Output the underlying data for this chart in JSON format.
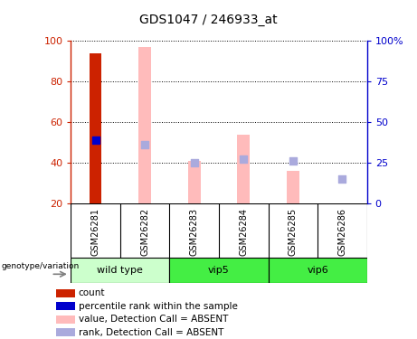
{
  "title": "GDS1047 / 246933_at",
  "samples": [
    "GSM26281",
    "GSM26282",
    "GSM26283",
    "GSM26284",
    "GSM26285",
    "GSM26286"
  ],
  "groups": {
    "wild type": [
      0,
      1
    ],
    "vip5": [
      2,
      3
    ],
    "vip6": [
      4,
      5
    ]
  },
  "group_order": [
    "wild type",
    "vip5",
    "vip6"
  ],
  "bar_bottom": 20,
  "ylim": [
    20,
    100
  ],
  "right_ylim": [
    0,
    100
  ],
  "right_yticks": [
    0,
    25,
    50,
    75,
    100
  ],
  "right_yticklabels": [
    "0",
    "25",
    "50",
    "75",
    "100%"
  ],
  "left_yticks": [
    20,
    40,
    60,
    80,
    100
  ],
  "left_yticklabels": [
    "20",
    "40",
    "60",
    "80",
    "100"
  ],
  "count_values": [
    94,
    null,
    null,
    null,
    null,
    null
  ],
  "count_color": "#cc2200",
  "percentile_values": [
    51,
    null,
    null,
    null,
    null,
    null
  ],
  "percentile_color": "#0000cc",
  "absent_value_bars": [
    null,
    97,
    41,
    54,
    36,
    20
  ],
  "absent_value_color": "#ffbbbb",
  "absent_rank_dots": [
    null,
    49,
    40,
    42,
    41,
    32
  ],
  "absent_rank_color": "#aaaadd",
  "bar_width": 0.25,
  "dot_size": 30,
  "grid_linestyle": "dotted",
  "grid_color": "black",
  "sample_label_area_color": "#cccccc",
  "group_colors": {
    "wild type": "#ccffcc",
    "vip5": "#44ee44",
    "vip6": "#44ee44"
  },
  "group_order_colors": [
    "#ccffcc",
    "#44ee44",
    "#44ee44"
  ],
  "genotype_label": "genotype/variation",
  "legend_items": [
    {
      "label": "count",
      "color": "#cc2200"
    },
    {
      "label": "percentile rank within the sample",
      "color": "#0000cc"
    },
    {
      "label": "value, Detection Call = ABSENT",
      "color": "#ffbbbb"
    },
    {
      "label": "rank, Detection Call = ABSENT",
      "color": "#aaaadd"
    }
  ]
}
